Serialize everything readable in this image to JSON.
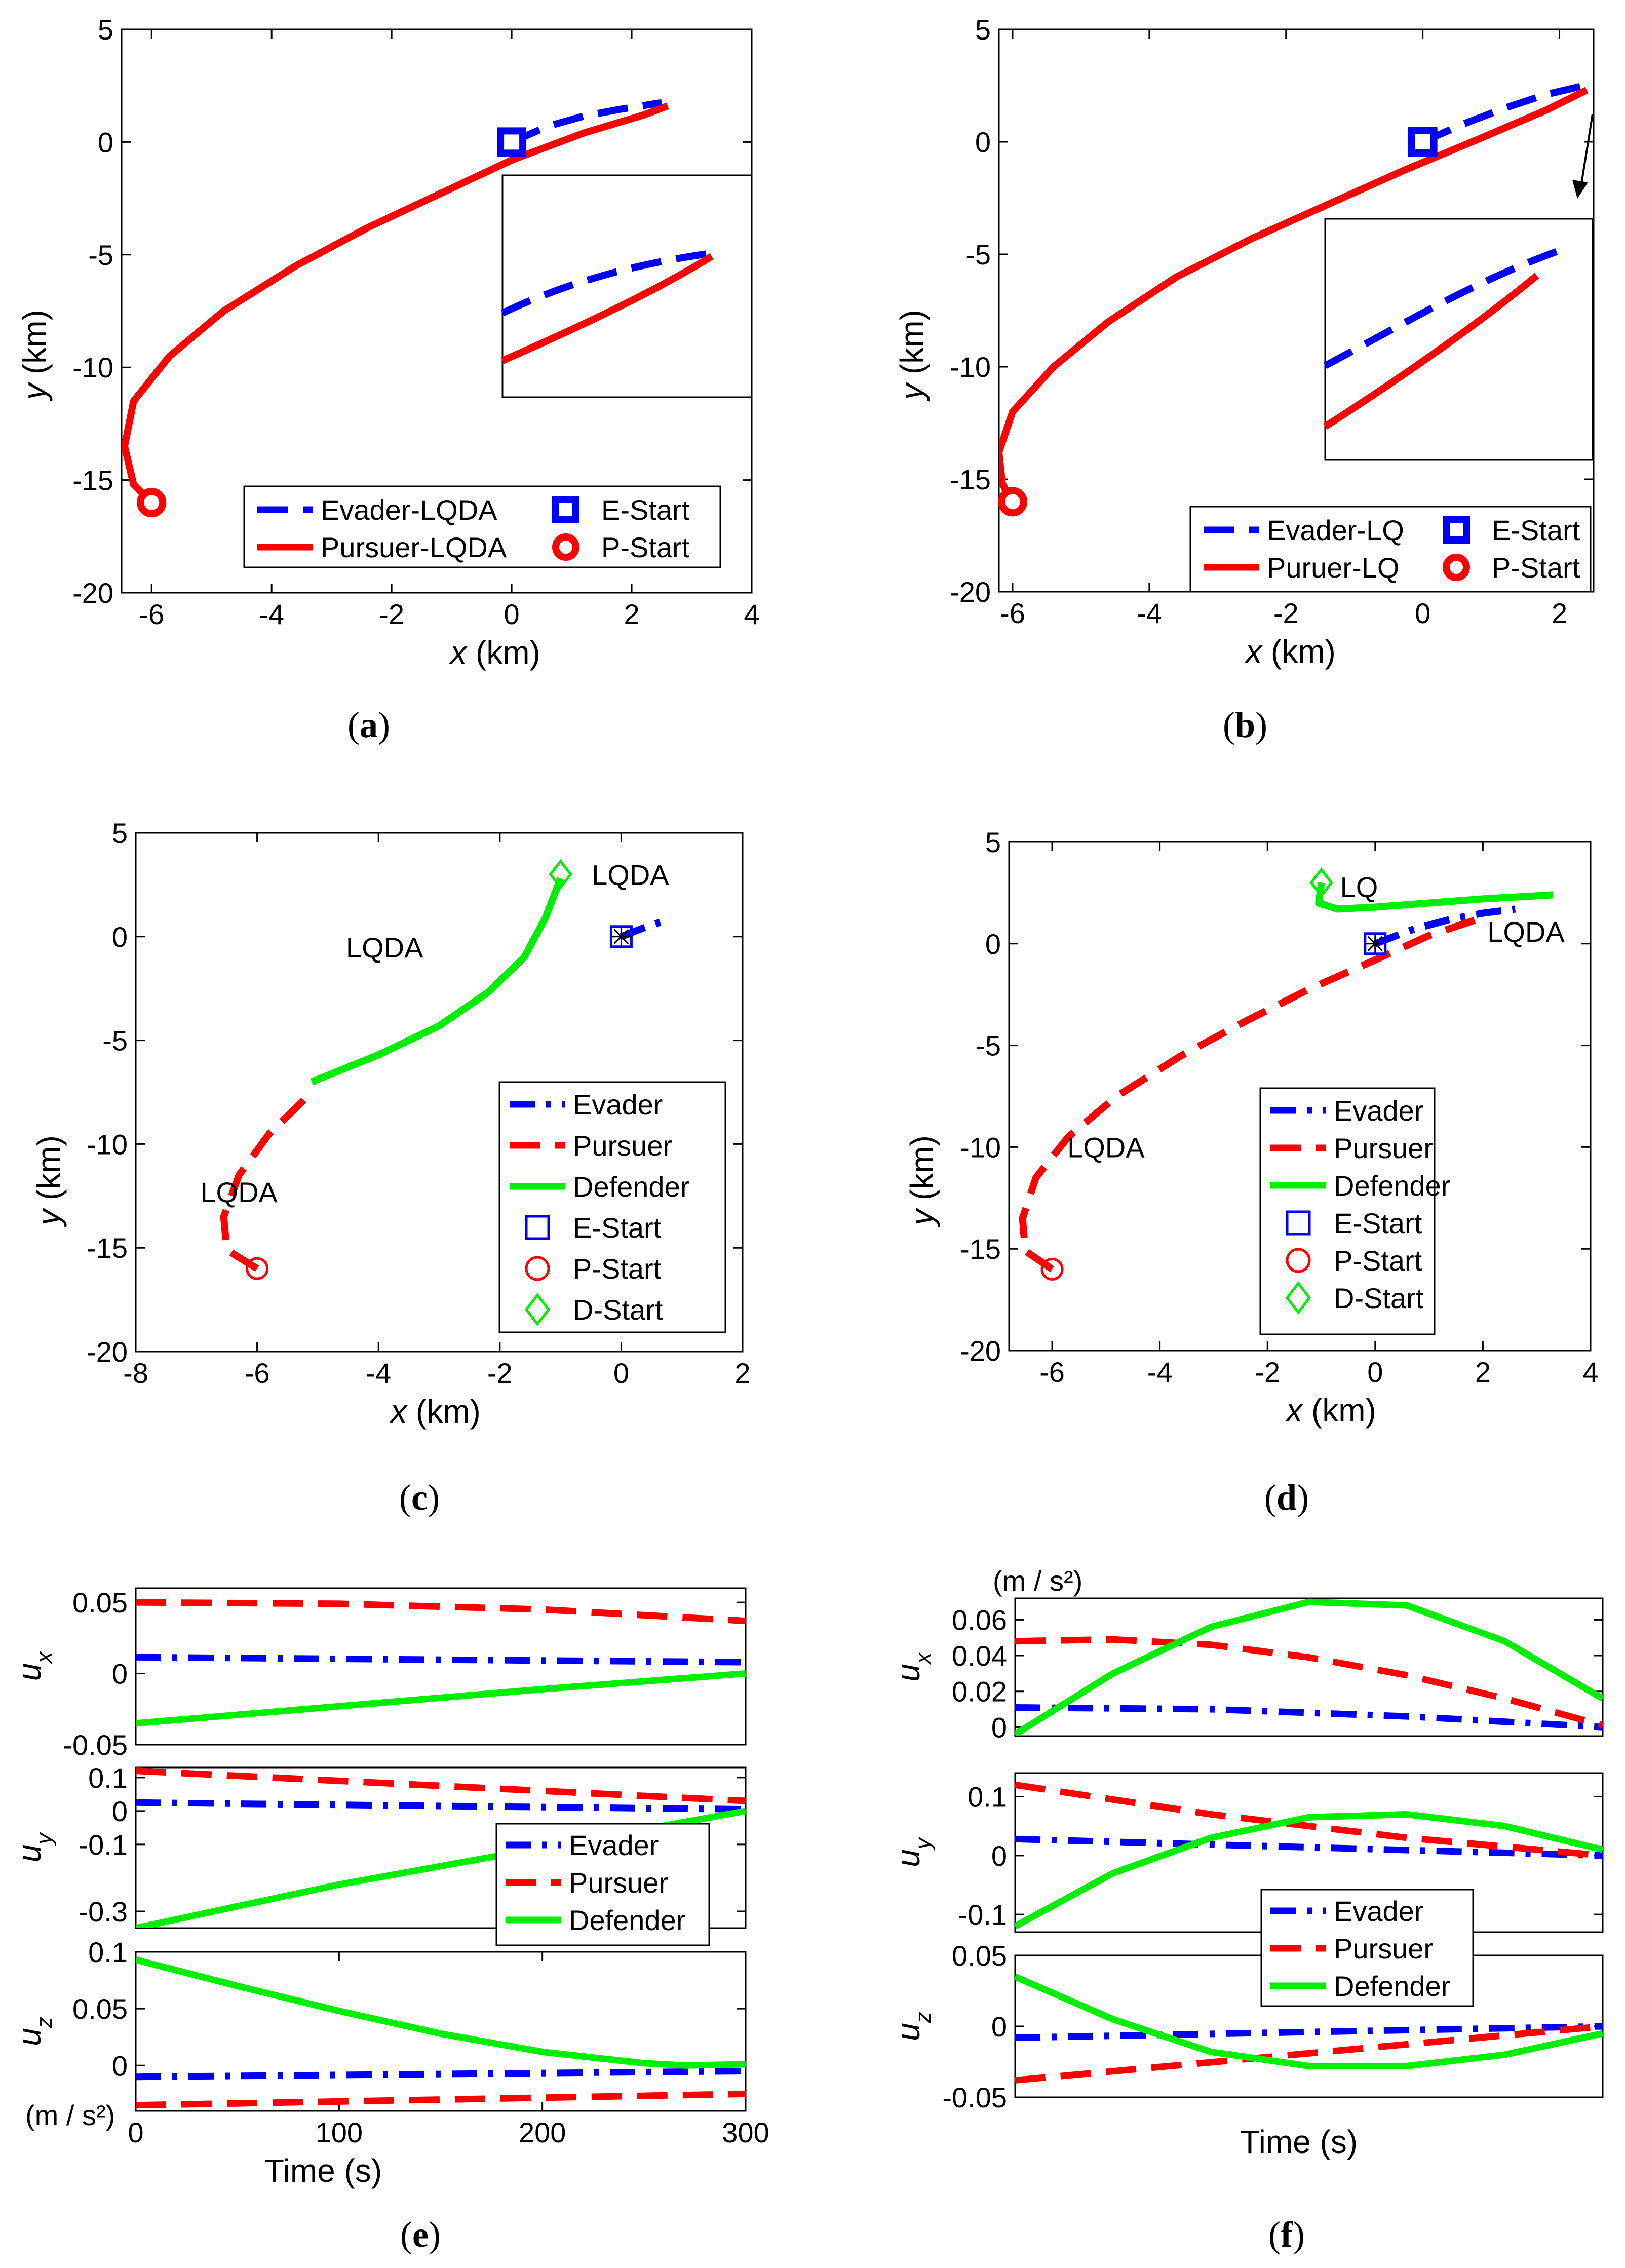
{
  "colors": {
    "evader": "#0000ff",
    "pursuer": "#ff0000",
    "defender": "#00ee00",
    "axis": "#000000"
  },
  "captions": [
    "(a)",
    "(b)",
    "(c)",
    "(d)",
    "(e)",
    "(f)"
  ],
  "chart_data": [
    {
      "id": "a",
      "type": "line",
      "xlabel": "x  (km)",
      "ylabel": "y  (km)",
      "xlim": [
        -6.5,
        4
      ],
      "ylim": [
        -20,
        5
      ],
      "xticks": [
        -6,
        -4,
        -2,
        0,
        2,
        4
      ],
      "yticks": [
        -20,
        -15,
        -10,
        -5,
        0,
        5
      ],
      "series": [
        {
          "name": "Evader-LQDA",
          "role": "evader",
          "style": "dash",
          "x": [
            0,
            0.6,
            1.2,
            1.8,
            2.5
          ],
          "y": [
            0,
            0.7,
            1.15,
            1.45,
            1.75
          ]
        },
        {
          "name": "Pursuer-LQDA",
          "role": "pursuer",
          "style": "solid",
          "x": [
            -6,
            -6.3,
            -6.45,
            -6.3,
            -5.7,
            -4.8,
            -3.6,
            -2.4,
            -1.2,
            0,
            1.2,
            2.2,
            2.6
          ],
          "y": [
            -16,
            -15.2,
            -13.5,
            -11.5,
            -9.5,
            -7.5,
            -5.5,
            -3.8,
            -2.3,
            -0.8,
            0.4,
            1.2,
            1.6
          ]
        }
      ],
      "markers": [
        {
          "name": "E-Start",
          "role": "evader",
          "shape": "square",
          "x": 0,
          "y": 0
        },
        {
          "name": "P-Start",
          "role": "pursuer",
          "shape": "circle",
          "x": -6,
          "y": -16
        }
      ],
      "legend": [
        "Evader-LQDA",
        "Pursuer-LQDA",
        "E-Start",
        "P-Start"
      ]
    },
    {
      "id": "b",
      "type": "line",
      "xlabel": "x  (km)",
      "ylabel": "y  (km)",
      "xlim": [
        -6.2,
        2.5
      ],
      "ylim": [
        -20,
        5
      ],
      "xticks": [
        -6,
        -4,
        -2,
        0,
        2
      ],
      "yticks": [
        -20,
        -15,
        -10,
        -5,
        0,
        5
      ],
      "series": [
        {
          "name": "Evader-LQ",
          "role": "evader",
          "style": "dash",
          "x": [
            0,
            0.6,
            1.2,
            1.8,
            2.5
          ],
          "y": [
            0,
            0.8,
            1.5,
            2.1,
            2.6
          ]
        },
        {
          "name": "Puruer-LQ",
          "role": "pursuer",
          "style": "solid",
          "x": [
            -6,
            -6.15,
            -6.2,
            -6.0,
            -5.4,
            -4.6,
            -3.6,
            -2.5,
            -1.4,
            -0.3,
            0.8,
            1.8,
            2.4
          ],
          "y": [
            -16,
            -15.2,
            -13.8,
            -12,
            -10,
            -8,
            -6,
            -4.3,
            -2.8,
            -1.3,
            0.1,
            1.4,
            2.3
          ]
        }
      ],
      "markers": [
        {
          "name": "E-Start",
          "role": "evader",
          "shape": "square",
          "x": 0,
          "y": 0
        },
        {
          "name": "P-Start",
          "role": "pursuer",
          "shape": "circle",
          "x": -6,
          "y": -16
        }
      ],
      "legend": [
        "Evader-LQ",
        "Puruer-LQ",
        "E-Start",
        "P-Start"
      ]
    },
    {
      "id": "c",
      "type": "line",
      "xlabel": "x (km)",
      "ylabel": "y (km)",
      "xlim": [
        -8,
        2
      ],
      "ylim": [
        -20,
        5
      ],
      "xticks": [
        -8,
        -6,
        -4,
        -2,
        0,
        2
      ],
      "yticks": [
        -20,
        -15,
        -10,
        -5,
        0,
        5
      ],
      "annotations": [
        {
          "text": "LQDA",
          "x": 0.15,
          "y": 2.5
        },
        {
          "text": "LQDA",
          "x": -3.9,
          "y": -1.0
        },
        {
          "text": "LQDA",
          "x": -6.3,
          "y": -12.8
        }
      ],
      "series": [
        {
          "name": "Evader",
          "role": "evader",
          "style": "dashdot",
          "x": [
            0,
            0.35,
            0.75
          ],
          "y": [
            0,
            0.4,
            0.8
          ]
        },
        {
          "name": "Pursuer",
          "role": "pursuer",
          "style": "dash",
          "x": [
            -6,
            -6.5,
            -6.55,
            -6.3,
            -5.8,
            -5.2
          ],
          "y": [
            -16,
            -15.1,
            -13.5,
            -11.5,
            -9.5,
            -7.8
          ]
        },
        {
          "name": "Defender",
          "role": "defender",
          "style": "solid",
          "x": [
            -5.1,
            -4.0,
            -3.0,
            -2.2,
            -1.6,
            -1.25,
            -1.0
          ],
          "y": [
            -7.0,
            -5.7,
            -4.3,
            -2.7,
            -1.0,
            0.9,
            2.8
          ]
        }
      ],
      "markers": [
        {
          "name": "E-Start",
          "role": "evader",
          "shape": "square-star",
          "x": 0,
          "y": 0
        },
        {
          "name": "P-Start",
          "role": "pursuer",
          "shape": "circle",
          "x": -6,
          "y": -16
        },
        {
          "name": "D-Start",
          "role": "defender",
          "shape": "diamond",
          "x": -1,
          "y": 3
        }
      ],
      "legend": [
        "Evader",
        "Pursuer",
        "Defender",
        "E-Start",
        "P-Start",
        "D-Start"
      ]
    },
    {
      "id": "d",
      "type": "line",
      "xlabel": "x (km)",
      "ylabel": "y (km)",
      "xlim": [
        -6.8,
        4
      ],
      "ylim": [
        -20,
        5
      ],
      "xticks": [
        -6,
        -4,
        -2,
        0,
        2,
        4
      ],
      "yticks": [
        -20,
        -15,
        -10,
        -5,
        0,
        5
      ],
      "annotations": [
        {
          "text": "LQ",
          "x": -0.3,
          "y": 2.3
        },
        {
          "text": "LQDA",
          "x": 2.8,
          "y": 0.1
        },
        {
          "text": "LQDA",
          "x": -5.0,
          "y": -10.5
        }
      ],
      "series": [
        {
          "name": "Evader",
          "role": "evader",
          "style": "dashdot",
          "x": [
            0,
            0.7,
            1.4,
            2.0,
            2.6
          ],
          "y": [
            0,
            0.7,
            1.2,
            1.5,
            1.7
          ]
        },
        {
          "name": "Pursuer",
          "role": "pursuer",
          "style": "dash",
          "x": [
            -6,
            -6.5,
            -6.55,
            -6.3,
            -5.7,
            -4.8,
            -3.6,
            -2.4,
            -1.2,
            0,
            1.0,
            1.9
          ],
          "y": [
            -16,
            -15.1,
            -13.5,
            -11.5,
            -9.5,
            -7.5,
            -5.5,
            -3.8,
            -2.2,
            -0.8,
            0.4,
            1.2
          ]
        },
        {
          "name": "Defender",
          "role": "defender",
          "style": "solid",
          "x": [
            -1,
            -1.05,
            -0.7,
            0,
            1.0,
            2.0,
            3.3
          ],
          "y": [
            3,
            2.0,
            1.7,
            1.8,
            2.0,
            2.2,
            2.4
          ]
        }
      ],
      "markers": [
        {
          "name": "E-Start",
          "role": "evader",
          "shape": "square-star",
          "x": 0,
          "y": 0
        },
        {
          "name": "P-Start",
          "role": "pursuer",
          "shape": "circle",
          "x": -6,
          "y": -16
        },
        {
          "name": "D-Start",
          "role": "defender",
          "shape": "diamond",
          "x": -1,
          "y": 3
        }
      ],
      "legend": [
        "Evader",
        "Pursuer",
        "Defender",
        "E-Start",
        "P-Start",
        "D-Start"
      ]
    },
    {
      "id": "e",
      "type": "line",
      "xlabel": "Time (s)",
      "xlim": [
        0,
        300
      ],
      "xticks": [
        0,
        100,
        200,
        300
      ],
      "unit_label": "(m / s²)",
      "legend": [
        "Evader",
        "Pursuer",
        "Defender"
      ],
      "subplots": [
        {
          "ylabel": "u",
          "subscript": "x",
          "ylim": [
            -0.05,
            0.06
          ],
          "yticks": [
            -0.05,
            0,
            0.05
          ],
          "ytick_labels": [
            "-0.05",
            "0",
            "0.05"
          ],
          "series": [
            {
              "name": "Evader",
              "role": "evader",
              "style": "dashdot",
              "x": [
                0,
                300
              ],
              "y": [
                0.0115,
                0.008
              ]
            },
            {
              "name": "Pursuer",
              "role": "pursuer",
              "style": "dash",
              "x": [
                0,
                100,
                200,
                300
              ],
              "y": [
                0.05,
                0.049,
                0.045,
                0.037
              ]
            },
            {
              "name": "Defender",
              "role": "defender",
              "style": "solid",
              "x": [
                0,
                100,
                200,
                300
              ],
              "y": [
                -0.035,
                -0.023,
                -0.011,
                0
              ]
            }
          ]
        },
        {
          "ylabel": "u",
          "subscript": "y",
          "ylim": [
            -0.35,
            0.13
          ],
          "yticks": [
            -0.3,
            -0.1,
            0,
            0.1
          ],
          "ytick_labels": [
            "-0.3",
            "-0.1",
            "0",
            "0.1"
          ],
          "series": [
            {
              "name": "Evader",
              "role": "evader",
              "style": "dashdot",
              "x": [
                0,
                300
              ],
              "y": [
                0.025,
                0.005
              ]
            },
            {
              "name": "Pursuer",
              "role": "pursuer",
              "style": "dash",
              "x": [
                0,
                300
              ],
              "y": [
                0.12,
                0.03
              ]
            },
            {
              "name": "Defender",
              "role": "defender",
              "style": "solid",
              "x": [
                0,
                100,
                200,
                300
              ],
              "y": [
                -0.35,
                -0.22,
                -0.11,
                0
              ]
            }
          ]
        },
        {
          "ylabel": "u",
          "subscript": "z",
          "ylim": [
            -0.04,
            0.1
          ],
          "yticks": [
            0,
            0.05,
            0.1
          ],
          "ytick_labels": [
            "0",
            "0.05",
            "0.1"
          ],
          "series": [
            {
              "name": "Evader",
              "role": "evader",
              "style": "dashdot",
              "x": [
                0,
                300
              ],
              "y": [
                -0.01,
                -0.005
              ]
            },
            {
              "name": "Pursuer",
              "role": "pursuer",
              "style": "dash",
              "x": [
                0,
                300
              ],
              "y": [
                -0.035,
                -0.025
              ]
            },
            {
              "name": "Defender",
              "role": "defender",
              "style": "solid",
              "x": [
                0,
                50,
                100,
                150,
                200,
                250,
                270,
                300
              ],
              "y": [
                0.093,
                0.07,
                0.048,
                0.028,
                0.012,
                0.002,
                0,
                0.001
              ]
            }
          ]
        }
      ]
    },
    {
      "id": "f",
      "type": "line",
      "xlabel": "Time (s)",
      "xlim": [
        0,
        300
      ],
      "xticks": [],
      "unit_label": "(m / s²)",
      "legend": [
        "Evader",
        "Pursuer",
        "Defender"
      ],
      "subplots": [
        {
          "ylabel": "u",
          "subscript": "x",
          "ylim": [
            -0.005,
            0.072
          ],
          "yticks": [
            0,
            0.02,
            0.04,
            0.06
          ],
          "ytick_labels": [
            "0",
            "0.02",
            "0.04",
            "0.06"
          ],
          "series": [
            {
              "name": "Evader",
              "role": "evader",
              "style": "dashdot",
              "x": [
                0,
                100,
                200,
                300
              ],
              "y": [
                0.011,
                0.01,
                0.006,
                0
              ]
            },
            {
              "name": "Pursuer",
              "role": "pursuer",
              "style": "dash",
              "x": [
                0,
                50,
                100,
                150,
                200,
                250,
                300
              ],
              "y": [
                0.048,
                0.049,
                0.046,
                0.039,
                0.029,
                0.016,
                0.001
              ]
            },
            {
              "name": "Defender",
              "role": "defender",
              "style": "solid",
              "x": [
                0,
                50,
                100,
                150,
                200,
                250,
                300
              ],
              "y": [
                -0.004,
                0.03,
                0.056,
                0.07,
                0.068,
                0.048,
                0.016
              ]
            }
          ]
        },
        {
          "ylabel": "u",
          "subscript": "y",
          "ylim": [
            -0.13,
            0.14
          ],
          "yticks": [
            -0.1,
            0,
            0.1
          ],
          "ytick_labels": [
            "-0.1",
            "0",
            "0.1"
          ],
          "series": [
            {
              "name": "Evader",
              "role": "evader",
              "style": "dashdot",
              "x": [
                0,
                300
              ],
              "y": [
                0.028,
                0
              ]
            },
            {
              "name": "Pursuer",
              "role": "pursuer",
              "style": "dash",
              "x": [
                0,
                100,
                200,
                300
              ],
              "y": [
                0.12,
                0.07,
                0.03,
                0
              ]
            },
            {
              "name": "Defender",
              "role": "defender",
              "style": "solid",
              "x": [
                0,
                50,
                100,
                150,
                200,
                250,
                300
              ],
              "y": [
                -0.12,
                -0.03,
                0.03,
                0.065,
                0.07,
                0.05,
                0.01
              ]
            }
          ]
        },
        {
          "ylabel": "u",
          "subscript": "z",
          "ylim": [
            -0.05,
            0.05
          ],
          "yticks": [
            -0.05,
            0,
            0.05
          ],
          "ytick_labels": [
            "-0.05",
            "0",
            "0.05"
          ],
          "series": [
            {
              "name": "Evader",
              "role": "evader",
              "style": "dashdot",
              "x": [
                0,
                300
              ],
              "y": [
                -0.008,
                0
              ]
            },
            {
              "name": "Pursuer",
              "role": "pursuer",
              "style": "dash",
              "x": [
                0,
                300
              ],
              "y": [
                -0.038,
                0
              ]
            },
            {
              "name": "Defender",
              "role": "defender",
              "style": "solid",
              "x": [
                0,
                50,
                100,
                150,
                200,
                250,
                300
              ],
              "y": [
                0.035,
                0.005,
                -0.018,
                -0.028,
                -0.028,
                -0.02,
                -0.005
              ]
            }
          ]
        }
      ]
    }
  ]
}
